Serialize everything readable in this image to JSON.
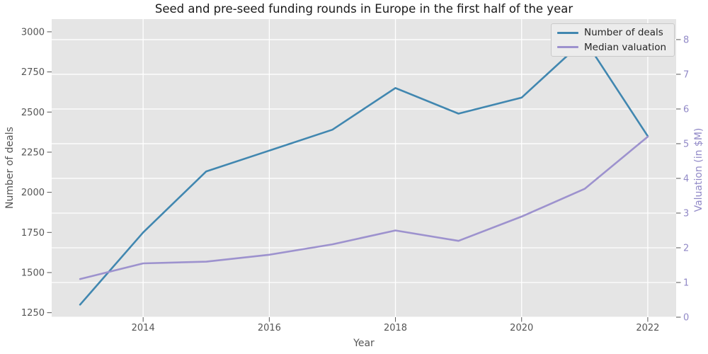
{
  "chart_data": {
    "type": "line",
    "title": "Seed and pre-seed funding rounds in Europe in the first half of the year",
    "xlabel": "Year",
    "x": [
      2013,
      2014,
      2015,
      2016,
      2017,
      2018,
      2019,
      2020,
      2021,
      2022
    ],
    "series": [
      {
        "name": "Number of deals",
        "axis": "left",
        "color": "#4187b0",
        "values": [
          1300,
          1750,
          2130,
          2260,
          2390,
          2650,
          2490,
          2590,
          2950,
          2350
        ]
      },
      {
        "name": "Median valuation",
        "axis": "right",
        "color": "#9d92ce",
        "values": [
          1.1,
          1.55,
          1.6,
          1.8,
          2.1,
          2.5,
          2.2,
          2.9,
          3.7,
          5.2
        ]
      }
    ],
    "x_axis": {
      "ticks": [
        2014,
        2016,
        2018,
        2020,
        2022
      ],
      "range": [
        2012.55,
        2022.45
      ],
      "color": "#555555"
    },
    "left_axis": {
      "label": "Number of deals",
      "ticks": [
        1250,
        1500,
        1750,
        2000,
        2250,
        2500,
        2750,
        3000
      ],
      "range": [
        1222,
        3079
      ],
      "color": "#555555"
    },
    "right_axis": {
      "label": "Valuation (in $M)",
      "ticks": [
        0,
        1,
        2,
        3,
        4,
        5,
        6,
        7,
        8
      ],
      "range": [
        0,
        8.59
      ],
      "color": "#9189c7"
    },
    "legend": {
      "position": "upper right",
      "entries": [
        "Number of deals",
        "Median valuation"
      ]
    },
    "grid": true,
    "style": {
      "plot_bg": "#e5e5e5",
      "grid_color": "#ffffff",
      "figure_bg": "#ffffff",
      "tick_color": "#555555",
      "title_color": "#1a1a1a"
    }
  }
}
